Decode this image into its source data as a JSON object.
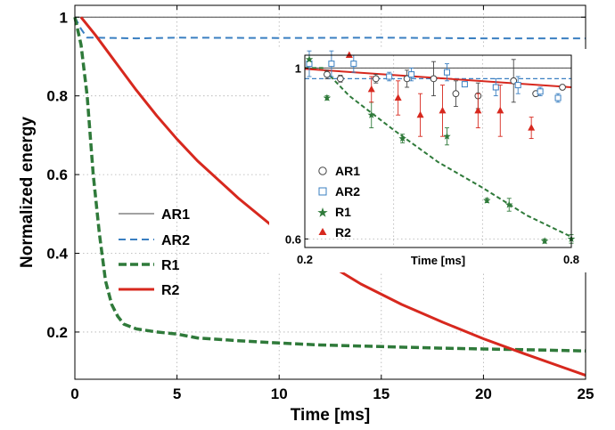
{
  "chart_data": [
    {
      "type": "line",
      "xlabel": "Time [ms]",
      "ylabel": "Normalized energy",
      "xlim": [
        0,
        25
      ],
      "ylim": [
        0.08,
        1.03
      ],
      "x_ticks": [
        0,
        5,
        10,
        15,
        20,
        25
      ],
      "x_tick_labels": [
        "0",
        "5",
        "10",
        "15",
        "20",
        "25"
      ],
      "y_ticks": [
        0.2,
        0.4,
        0.6,
        0.8,
        1
      ],
      "y_tick_labels": [
        "0.2",
        "0.4",
        "0.6",
        "0.8",
        "1"
      ],
      "grid": true,
      "legend_position": "center-left",
      "series": [
        {
          "name": "AR1",
          "color": "#444444",
          "style": "solid",
          "x": [
            0,
            25
          ],
          "y": [
            1.0,
            1.0
          ]
        },
        {
          "name": "AR2",
          "color": "#3a7fc1",
          "style": "dashed",
          "x": [
            0,
            0.3,
            0.6,
            1,
            3,
            5,
            10,
            15,
            20,
            25
          ],
          "y": [
            1.0,
            0.97,
            0.948,
            0.948,
            0.946,
            0.948,
            0.947,
            0.948,
            0.946,
            0.946
          ]
        },
        {
          "name": "R1",
          "color": "#2f7a3a",
          "style": "dashed",
          "x": [
            0,
            0.3,
            0.6,
            0.9,
            1.2,
            1.5,
            1.8,
            2.1,
            2.4,
            3,
            4,
            5,
            6,
            8,
            10,
            12,
            15,
            18,
            20,
            22,
            25
          ],
          "y": [
            1.0,
            0.93,
            0.8,
            0.6,
            0.45,
            0.33,
            0.27,
            0.24,
            0.22,
            0.208,
            0.2,
            0.195,
            0.185,
            0.178,
            0.172,
            0.167,
            0.163,
            0.159,
            0.157,
            0.155,
            0.152
          ]
        },
        {
          "name": "R2",
          "color": "#d7281e",
          "style": "solid",
          "x": [
            0.3,
            1,
            2,
            3,
            4,
            5,
            6,
            8,
            10,
            12,
            14,
            16,
            18,
            20,
            22,
            25
          ],
          "y": [
            1.0,
            0.955,
            0.885,
            0.815,
            0.75,
            0.69,
            0.635,
            0.54,
            0.455,
            0.385,
            0.322,
            0.27,
            0.225,
            0.183,
            0.145,
            0.09
          ]
        }
      ]
    },
    {
      "type": "scatter",
      "xlabel": "Time [ms]",
      "ylabel": "",
      "xlim": [
        0.2,
        0.8
      ],
      "ylim": [
        0.58,
        1.03
      ],
      "x_ticks": [
        0.2,
        0.8
      ],
      "x_tick_labels": [
        "0.2",
        "0.8"
      ],
      "y_ticks": [
        0.6,
        1.0
      ],
      "y_tick_labels": [
        "0.6",
        "1"
      ],
      "grid": true,
      "legend_position": "bottom-left",
      "lines": [
        {
          "name": "AR1",
          "color": "#444444",
          "style": "solid",
          "x": [
            0.2,
            0.8
          ],
          "y": [
            1.0,
            1.0
          ]
        },
        {
          "name": "AR2",
          "color": "#3a7fc1",
          "style": "dashed",
          "x": [
            0.2,
            0.8
          ],
          "y": [
            0.975,
            0.975
          ]
        },
        {
          "name": "R1",
          "color": "#2f7a3a",
          "style": "dashed",
          "x": [
            0.2,
            0.24,
            0.3,
            0.4,
            0.5,
            0.6,
            0.7,
            0.8
          ],
          "y": [
            1.0,
            1.0,
            0.935,
            0.855,
            0.78,
            0.72,
            0.655,
            0.605
          ]
        },
        {
          "name": "R2",
          "color": "#d7281e",
          "style": "solid",
          "x": [
            0.2,
            0.8
          ],
          "y": [
            0.998,
            0.955
          ]
        }
      ],
      "series": [
        {
          "name": "AR1",
          "color": "#444444",
          "marker": "circle",
          "points": [
            {
              "x": 0.25,
              "y": 0.985,
              "err": 0.01
            },
            {
              "x": 0.28,
              "y": 0.975,
              "err": 0.008
            },
            {
              "x": 0.36,
              "y": 0.975,
              "err": 0.01
            },
            {
              "x": 0.43,
              "y": 0.975,
              "err": 0.02
            },
            {
              "x": 0.49,
              "y": 0.975,
              "err": 0.04
            },
            {
              "x": 0.54,
              "y": 0.94,
              "err": 0.03
            },
            {
              "x": 0.59,
              "y": 0.935,
              "err": 0.03
            },
            {
              "x": 0.67,
              "y": 0.97,
              "err": 0.05
            },
            {
              "x": 0.72,
              "y": 0.94,
              "err": 0.005
            },
            {
              "x": 0.78,
              "y": 0.955,
              "err": 0.005
            }
          ]
        },
        {
          "name": "AR2",
          "color": "#3a7fc1",
          "marker": "square",
          "points": [
            {
              "x": 0.21,
              "y": 1.01,
              "err": 0.03
            },
            {
              "x": 0.26,
              "y": 1.01,
              "err": 0.03
            },
            {
              "x": 0.31,
              "y": 1.01,
              "err": 0.02
            },
            {
              "x": 0.39,
              "y": 0.98,
              "err": 0.01
            },
            {
              "x": 0.44,
              "y": 0.985,
              "err": 0.015
            },
            {
              "x": 0.52,
              "y": 0.99,
              "err": 0.02
            },
            {
              "x": 0.56,
              "y": 0.962,
              "err": 0.005
            },
            {
              "x": 0.63,
              "y": 0.955,
              "err": 0.02
            },
            {
              "x": 0.68,
              "y": 0.96,
              "err": 0.02
            },
            {
              "x": 0.73,
              "y": 0.945,
              "err": 0.01
            },
            {
              "x": 0.77,
              "y": 0.93,
              "err": 0.01
            }
          ]
        },
        {
          "name": "R1",
          "color": "#2f7a3a",
          "marker": "star",
          "points": [
            {
              "x": 0.21,
              "y": 1.02,
              "err": 0.0
            },
            {
              "x": 0.25,
              "y": 0.93,
              "err": 0.005
            },
            {
              "x": 0.35,
              "y": 0.89,
              "err": 0.03
            },
            {
              "x": 0.42,
              "y": 0.835,
              "err": 0.01
            },
            {
              "x": 0.52,
              "y": 0.84,
              "err": 0.02
            },
            {
              "x": 0.61,
              "y": 0.69,
              "err": 0.005
            },
            {
              "x": 0.66,
              "y": 0.68,
              "err": 0.015
            },
            {
              "x": 0.74,
              "y": 0.595,
              "err": 0.005
            },
            {
              "x": 0.8,
              "y": 0.6,
              "err": 0.01
            }
          ]
        },
        {
          "name": "R2",
          "color": "#d7281e",
          "marker": "triangle",
          "points": [
            {
              "x": 0.3,
              "y": 1.03,
              "err": 0.0
            },
            {
              "x": 0.35,
              "y": 0.95,
              "err": 0.03
            },
            {
              "x": 0.41,
              "y": 0.93,
              "err": 0.04
            },
            {
              "x": 0.46,
              "y": 0.89,
              "err": 0.05
            },
            {
              "x": 0.51,
              "y": 0.9,
              "err": 0.06
            },
            {
              "x": 0.59,
              "y": 0.9,
              "err": 0.04
            },
            {
              "x": 0.64,
              "y": 0.9,
              "err": 0.06
            },
            {
              "x": 0.71,
              "y": 0.86,
              "err": 0.025
            }
          ]
        }
      ]
    }
  ]
}
